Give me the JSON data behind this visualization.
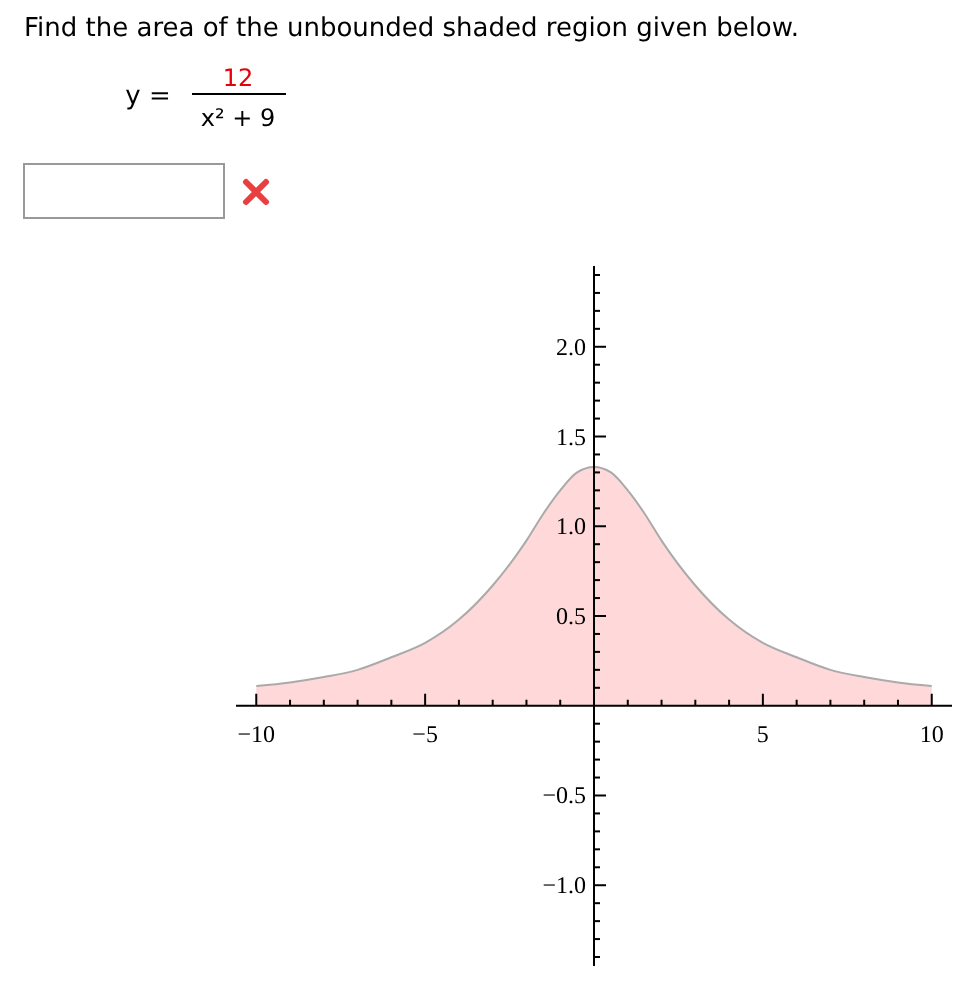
{
  "chart_data": {
    "type": "area",
    "title": "Find the area of the unbounded shaded region given below.",
    "annotations": [
      "y =",
      "12",
      "x² + 9"
    ],
    "x": [
      -10,
      -9,
      -8,
      -7,
      -6,
      -5,
      -4,
      -3,
      -2,
      -1.5,
      -1,
      -0.5,
      0,
      0.5,
      1,
      1.5,
      2,
      3,
      4,
      5,
      6,
      7,
      8,
      9,
      10
    ],
    "series": [
      {
        "color": "#ffd9d9",
        "values": [
          0.11,
          0.13,
          0.16,
          0.2,
          0.27,
          0.35,
          0.48,
          0.67,
          0.92,
          1.07,
          1.2,
          1.3,
          1.33,
          1.3,
          1.2,
          1.07,
          0.92,
          0.67,
          0.48,
          0.35,
          0.27,
          0.2,
          0.16,
          0.13,
          0.11
        ]
      }
    ],
    "xlim": [
      -10.6,
      10.6
    ],
    "ylim": [
      -1.45,
      2.45
    ],
    "xticks": [
      {
        "value": -10,
        "label": "−10"
      },
      {
        "value": -9,
        "label": null
      },
      {
        "value": -8,
        "label": null
      },
      {
        "value": -7,
        "label": null
      },
      {
        "value": -6,
        "label": null
      },
      {
        "value": -5,
        "label": "−5"
      },
      {
        "value": -4,
        "label": null
      },
      {
        "value": -3,
        "label": null
      },
      {
        "value": -2,
        "label": null
      },
      {
        "value": -1,
        "label": null
      },
      {
        "value": 1,
        "label": null
      },
      {
        "value": 2,
        "label": null
      },
      {
        "value": 3,
        "label": null
      },
      {
        "value": 4,
        "label": null
      },
      {
        "value": 5,
        "label": "5"
      },
      {
        "value": 6,
        "label": null
      },
      {
        "value": 7,
        "label": null
      },
      {
        "value": 8,
        "label": null
      },
      {
        "value": 9,
        "label": null
      },
      {
        "value": 10,
        "label": "10"
      }
    ],
    "yticks": [
      {
        "value": -1.4,
        "label": null
      },
      {
        "value": -1.3,
        "label": null
      },
      {
        "value": -1.2,
        "label": null
      },
      {
        "value": -1.1,
        "label": null
      },
      {
        "value": -1,
        "label": "−1.0"
      },
      {
        "value": -0.9,
        "label": null
      },
      {
        "value": -0.8,
        "label": null
      },
      {
        "value": -0.7,
        "label": null
      },
      {
        "value": -0.6,
        "label": null
      },
      {
        "value": -0.5,
        "label": "−0.5"
      },
      {
        "value": -0.4,
        "label": null
      },
      {
        "value": -0.3,
        "label": null
      },
      {
        "value": -0.2,
        "label": null
      },
      {
        "value": -0.1,
        "label": null
      },
      {
        "value": 0.1,
        "label": null
      },
      {
        "value": 0.2,
        "label": null
      },
      {
        "value": 0.3,
        "label": null
      },
      {
        "value": 0.4,
        "label": null
      },
      {
        "value": 0.5,
        "label": "0.5"
      },
      {
        "value": 0.6,
        "label": null
      },
      {
        "value": 0.7,
        "label": null
      },
      {
        "value": 0.8,
        "label": null
      },
      {
        "value": 0.9,
        "label": null
      },
      {
        "value": 1,
        "label": "1.0"
      },
      {
        "value": 1.1,
        "label": null
      },
      {
        "value": 1.2,
        "label": null
      },
      {
        "value": 1.3,
        "label": null
      },
      {
        "value": 1.4,
        "label": null
      },
      {
        "value": 1.5,
        "label": "1.5"
      },
      {
        "value": 1.6,
        "label": null
      },
      {
        "value": 1.7,
        "label": null
      },
      {
        "value": 1.8,
        "label": null
      },
      {
        "value": 1.9,
        "label": null
      },
      {
        "value": 2,
        "label": "2.0"
      },
      {
        "value": 2.1,
        "label": null
      },
      {
        "value": 2.2,
        "label": null
      },
      {
        "value": 2.3,
        "label": null
      },
      {
        "value": 2.4,
        "label": null
      }
    ]
  }
}
